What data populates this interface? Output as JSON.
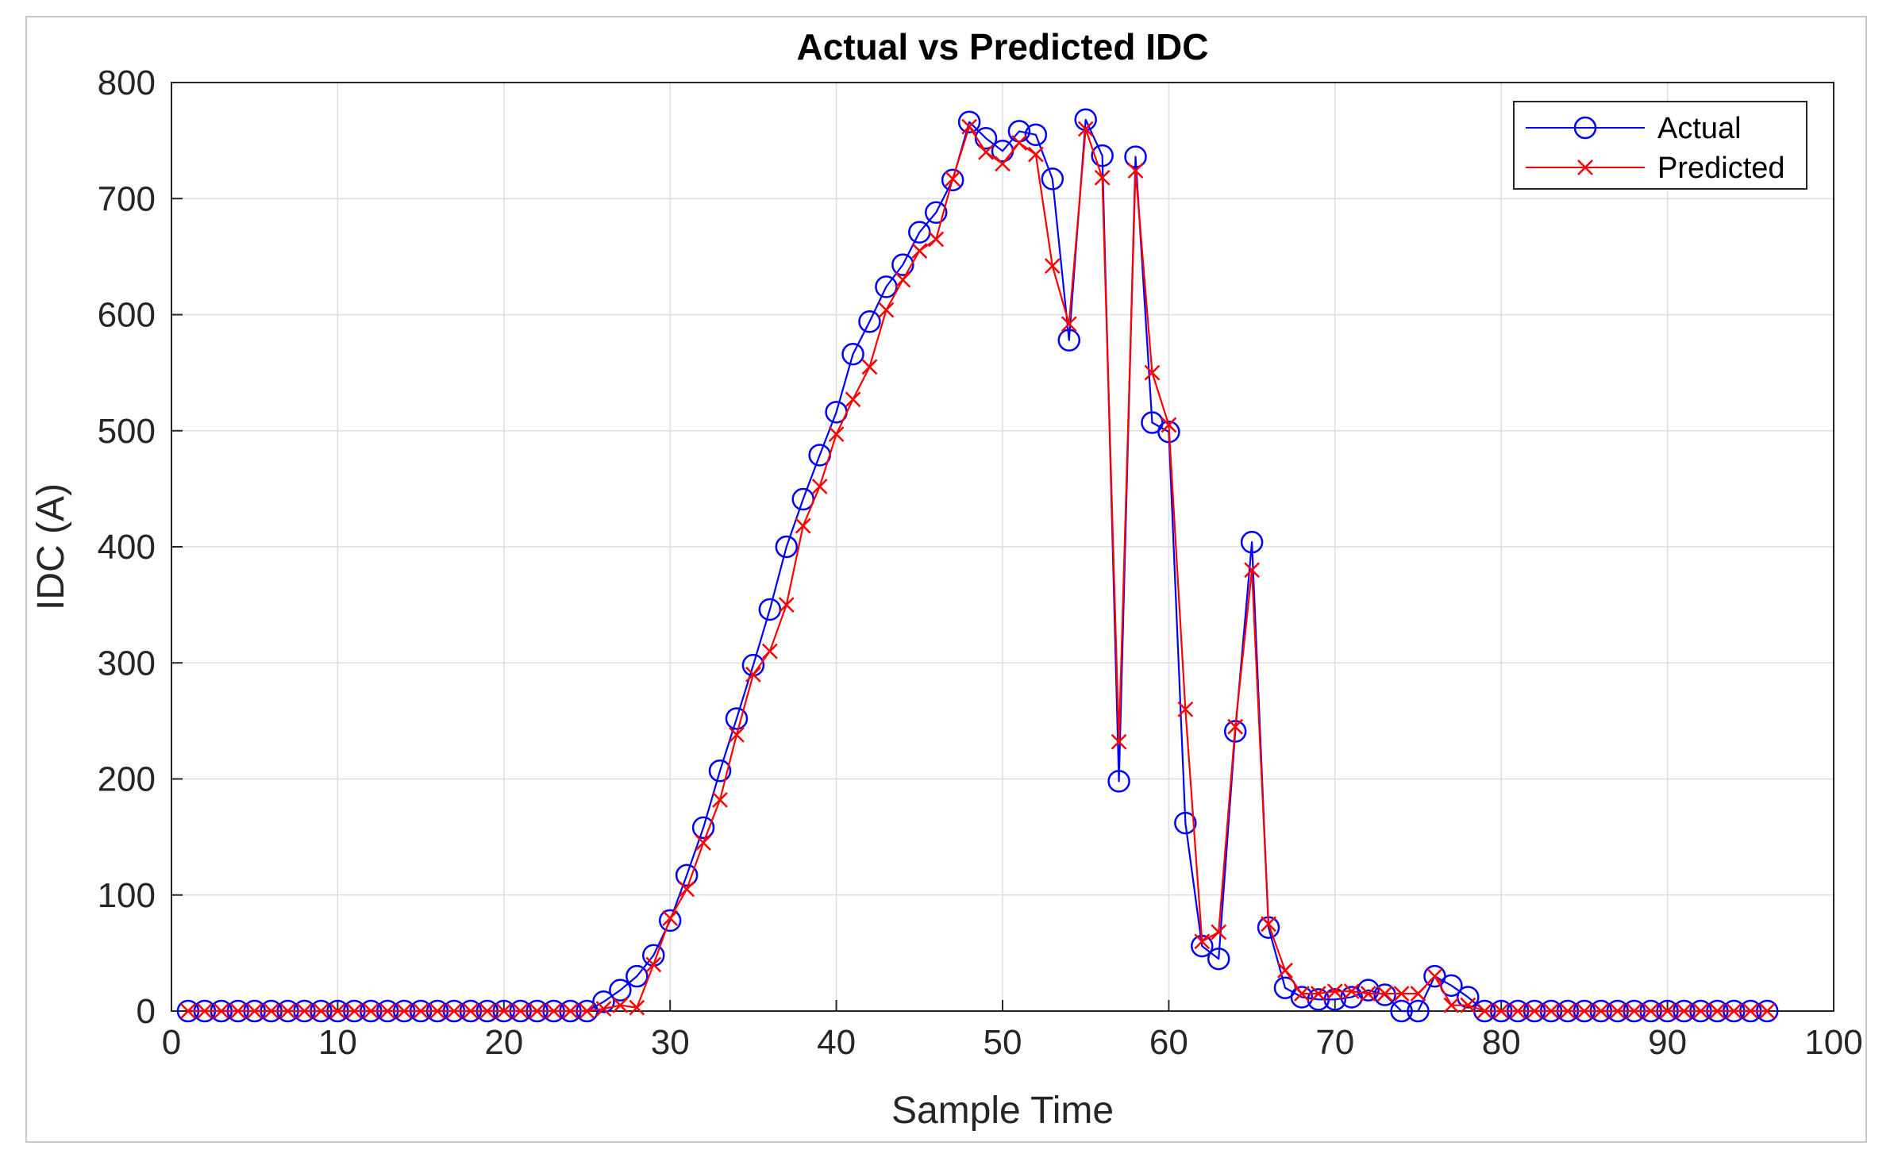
{
  "chart_data": {
    "type": "line",
    "title": "Actual vs Predicted IDC",
    "xlabel": "Sample Time",
    "ylabel": "IDC (A)",
    "xlim": [
      0,
      100
    ],
    "ylim": [
      0,
      800
    ],
    "xticks": [
      "0",
      "10",
      "20",
      "30",
      "40",
      "50",
      "60",
      "70",
      "80",
      "90",
      "100"
    ],
    "yticks": [
      "0",
      "100",
      "200",
      "300",
      "400",
      "500",
      "600",
      "700",
      "800"
    ],
    "grid": true,
    "legend_position": "top-right",
    "x": [
      1,
      2,
      3,
      4,
      5,
      6,
      7,
      8,
      9,
      10,
      11,
      12,
      13,
      14,
      15,
      16,
      17,
      18,
      19,
      20,
      21,
      22,
      23,
      24,
      25,
      26,
      27,
      28,
      29,
      30,
      31,
      32,
      33,
      34,
      35,
      36,
      37,
      38,
      39,
      40,
      41,
      42,
      43,
      44,
      45,
      46,
      47,
      48,
      49,
      50,
      51,
      52,
      53,
      54,
      55,
      56,
      57,
      58,
      59,
      60,
      61,
      62,
      63,
      64,
      65,
      66,
      67,
      68,
      69,
      70,
      71,
      72,
      73,
      74,
      75,
      76,
      77,
      78,
      79,
      80,
      81,
      82,
      83,
      84,
      85,
      86,
      87,
      88,
      89,
      90,
      91,
      92,
      93,
      94,
      95,
      96
    ],
    "series": [
      {
        "name": "Actual",
        "color": "#0000ff",
        "marker": "circle",
        "values": [
          0,
          0,
          0,
          0,
          0,
          0,
          0,
          0,
          0,
          0,
          0,
          0,
          0,
          0,
          0,
          0,
          0,
          0,
          0,
          0,
          0,
          0,
          0,
          0,
          0,
          8,
          18,
          30,
          48,
          78,
          117,
          158,
          207,
          252,
          298,
          346,
          400,
          441,
          479,
          516,
          566,
          594,
          624,
          643,
          671,
          688,
          716,
          766,
          752,
          741,
          758,
          755,
          717,
          578,
          768,
          737,
          198,
          736,
          507,
          499,
          162,
          56,
          45,
          241,
          404,
          72,
          20,
          12,
          10,
          10,
          12,
          18,
          14,
          0,
          0,
          30,
          22,
          12,
          0,
          0,
          0,
          0,
          0,
          0,
          0,
          0,
          0,
          0,
          0,
          0,
          0,
          0,
          0,
          0,
          0,
          0
        ]
      },
      {
        "name": "Predicted",
        "color": "#ff0000",
        "marker": "x",
        "values": [
          0,
          0,
          0,
          0,
          0,
          0,
          0,
          0,
          0,
          0,
          0,
          0,
          0,
          0,
          0,
          0,
          0,
          0,
          0,
          0,
          0,
          0,
          0,
          0,
          0,
          2,
          5,
          3,
          40,
          80,
          105,
          145,
          182,
          238,
          290,
          310,
          350,
          418,
          452,
          497,
          527,
          555,
          604,
          630,
          655,
          665,
          717,
          762,
          740,
          730,
          748,
          738,
          642,
          592,
          760,
          718,
          232,
          724,
          550,
          505,
          260,
          60,
          68,
          245,
          380,
          75,
          35,
          15,
          15,
          17,
          17,
          15,
          15,
          15,
          15,
          30,
          5,
          5,
          0,
          0,
          0,
          0,
          0,
          0,
          0,
          0,
          0,
          0,
          0,
          0,
          0,
          0,
          0,
          0,
          0,
          0
        ]
      }
    ]
  }
}
